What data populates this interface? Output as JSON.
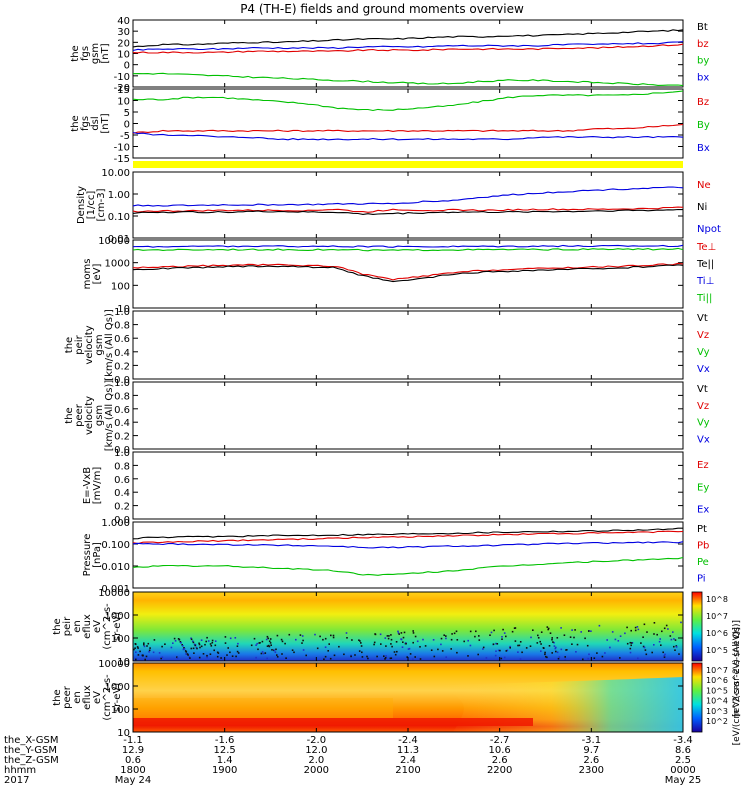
{
  "chart_data": {
    "type": "line",
    "title": "P4 (TH-E) fields and ground moments overview",
    "x_ticks": [
      "1800",
      "1900",
      "2000",
      "2100",
      "2200",
      "2300",
      "0000"
    ],
    "x_range_hhmm": [
      "1800",
      "0000"
    ],
    "panels": [
      {
        "id": "fgs-gsm",
        "ylabel": [
          "the",
          "fgs",
          "gsm",
          "[nT]"
        ],
        "yticks": [
          "40",
          "30",
          "20",
          "10",
          "0",
          "-10",
          "-20"
        ],
        "ylim": [
          -20,
          40
        ],
        "scale": "linear",
        "legend": [
          {
            "name": "Bt",
            "color": "#000000"
          },
          {
            "name": "bz",
            "color": "#e00000"
          },
          {
            "name": "by",
            "color": "#00c000"
          },
          {
            "name": "bx",
            "color": "#0000e0"
          }
        ],
        "series": [
          {
            "name": "Bt",
            "color": "#000000",
            "values": [
              16,
              18,
              18,
              19,
              20,
              20,
              21,
              22,
              23,
              23,
              24,
              25,
              25,
              26,
              26,
              27,
              28,
              29,
              30,
              31
            ]
          },
          {
            "name": "bz",
            "color": "#e00000",
            "values": [
              11,
              11,
              11,
              11,
              12,
              12,
              12,
              12,
              13,
              13,
              13,
              14,
              14,
              14,
              14,
              15,
              15,
              16,
              17,
              18
            ]
          },
          {
            "name": "by",
            "color": "#00c000",
            "values": [
              -8,
              -8,
              -9,
              -10,
              -11,
              -12,
              -13,
              -14,
              -15,
              -16,
              -17,
              -17,
              -15,
              -14,
              -14,
              -15,
              -16,
              -17,
              -18,
              -19
            ]
          },
          {
            "name": "bx",
            "color": "#0000e0",
            "values": [
              13,
              14,
              14,
              14,
              15,
              15,
              15,
              15,
              16,
              16,
              16,
              17,
              17,
              17,
              17,
              18,
              18,
              19,
              19,
              20
            ]
          }
        ]
      },
      {
        "id": "fgs-dsl",
        "ylabel": [
          "the",
          "fgs",
          "dsl",
          "[nT]"
        ],
        "yticks": [
          "15",
          "10",
          "5",
          "0",
          "-5",
          "-10",
          "-15"
        ],
        "ylim": [
          -18,
          15
        ],
        "scale": "linear",
        "legend": [
          {
            "name": "Bz",
            "color": "#e00000"
          },
          {
            "name": "By",
            "color": "#00c000"
          },
          {
            "name": "Bx",
            "color": "#0000e0"
          }
        ],
        "series": [
          {
            "name": "Bz",
            "color": "#e00000",
            "values": [
              -6,
              -5,
              -5,
              -5,
              -5,
              -5,
              -5,
              -5,
              -5,
              -5,
              -5,
              -5,
              -5,
              -5,
              -5,
              -5,
              -4,
              -4,
              -3,
              -2
            ]
          },
          {
            "name": "By",
            "color": "#00c000",
            "values": [
              10,
              10,
              11,
              11,
              10,
              9,
              8,
              6,
              5,
              5,
              6,
              7,
              9,
              11,
              12,
              12,
              12,
              12,
              13,
              14
            ]
          },
          {
            "name": "Bx",
            "color": "#0000e0",
            "values": [
              -6,
              -7,
              -7,
              -8,
              -8,
              -9,
              -9,
              -9,
              -9,
              -9,
              -9,
              -9,
              -9,
              -9,
              -8,
              -8,
              -8,
              -8,
              -8,
              -8
            ]
          }
        ]
      },
      {
        "id": "density",
        "ylabel": [
          "Density",
          "[1/cc]",
          "[cm-3]"
        ],
        "yticks": [
          "10.00",
          "1.00",
          "0.10",
          "0.01"
        ],
        "ylim": [
          0.01,
          10
        ],
        "scale": "log",
        "legend": [
          {
            "name": "Ne",
            "color": "#e00000"
          },
          {
            "name": "Ni",
            "color": "#000000"
          },
          {
            "name": "Npot",
            "color": "#0000e0"
          }
        ],
        "series": [
          {
            "name": "Ne",
            "color": "#e00000",
            "values": [
              0.16,
              0.17,
              0.17,
              0.18,
              0.18,
              0.18,
              0.18,
              0.2,
              0.15,
              0.2,
              0.18,
              0.19,
              0.18,
              0.19,
              0.2,
              0.2,
              0.2,
              0.21,
              0.22,
              0.25
            ]
          },
          {
            "name": "Ni",
            "color": "#000000",
            "values": [
              0.14,
              0.15,
              0.15,
              0.15,
              0.16,
              0.16,
              0.15,
              0.15,
              0.12,
              0.13,
              0.14,
              0.15,
              0.15,
              0.15,
              0.16,
              0.16,
              0.17,
              0.18,
              0.18,
              0.2
            ]
          },
          {
            "name": "Npot",
            "color": "#0000e0",
            "values": [
              0.3,
              0.3,
              0.3,
              0.32,
              0.32,
              0.33,
              0.33,
              0.35,
              0.36,
              0.36,
              0.45,
              0.5,
              0.7,
              0.9,
              1.1,
              1.3,
              1.5,
              1.7,
              1.9,
              2.0
            ]
          }
        ]
      },
      {
        "id": "moms-temp",
        "ylabel": [
          "moms",
          "[eV]"
        ],
        "yticks": [
          "10000",
          "1000",
          "100",
          "10"
        ],
        "ylim": [
          10,
          10000
        ],
        "scale": "log",
        "legend": [
          {
            "name": "Te⊥",
            "color": "#e00000"
          },
          {
            "name": "Te||",
            "color": "#000000"
          },
          {
            "name": "Ti⊥",
            "color": "#0000e0"
          },
          {
            "name": "Ti||",
            "color": "#00c000"
          }
        ],
        "series": [
          {
            "name": "Te⊥",
            "color": "#e00000",
            "values": [
              600,
              650,
              700,
              750,
              800,
              800,
              750,
              700,
              300,
              180,
              250,
              350,
              450,
              500,
              550,
              600,
              650,
              700,
              800,
              900
            ]
          },
          {
            "name": "Te||",
            "color": "#000000",
            "values": [
              500,
              550,
              600,
              650,
              700,
              700,
              650,
              600,
              250,
              140,
              200,
              300,
              380,
              420,
              460,
              500,
              550,
              600,
              700,
              800
            ]
          },
          {
            "name": "Ti⊥",
            "color": "#0000e0",
            "values": [
              5000,
              5200,
              5200,
              5300,
              5300,
              5300,
              5200,
              5200,
              5100,
              5000,
              5100,
              5200,
              5300,
              5300,
              5400,
              5400,
              5400,
              5500,
              5500,
              5500
            ]
          },
          {
            "name": "Ti||",
            "color": "#00c000",
            "values": [
              3600,
              3700,
              3700,
              3800,
              3800,
              3800,
              3700,
              3700,
              3600,
              3500,
              3600,
              3700,
              3700,
              3800,
              3800,
              3800,
              3900,
              3900,
              3900,
              4000
            ]
          }
        ]
      },
      {
        "id": "peir-velocity",
        "ylabel": [
          "the",
          "peir",
          "velocity",
          "gsm",
          "[km/s (All Qs)]"
        ],
        "yticks": [
          "1.0",
          "0.8",
          "0.6",
          "0.4",
          "0.2",
          "0.0"
        ],
        "ylim": [
          0,
          1
        ],
        "scale": "linear",
        "legend": [
          {
            "name": "Vt",
            "color": "#000000"
          },
          {
            "name": "Vz",
            "color": "#e00000"
          },
          {
            "name": "Vy",
            "color": "#00c000"
          },
          {
            "name": "Vx",
            "color": "#0000e0"
          }
        ],
        "series": []
      },
      {
        "id": "peer-velocity",
        "ylabel": [
          "the",
          "peer",
          "velocity",
          "gsm",
          "[km/s (All Qs)]"
        ],
        "yticks": [
          "1.0",
          "0.8",
          "0.6",
          "0.4",
          "0.2",
          "0.0"
        ],
        "ylim": [
          0,
          1
        ],
        "scale": "linear",
        "legend": [
          {
            "name": "Vt",
            "color": "#000000"
          },
          {
            "name": "Vz",
            "color": "#e00000"
          },
          {
            "name": "Vy",
            "color": "#00c000"
          },
          {
            "name": "Vx",
            "color": "#0000e0"
          }
        ],
        "series": []
      },
      {
        "id": "efield",
        "ylabel": [
          "E=-VxB",
          "[mV/m]"
        ],
        "yticks": [
          "1.0",
          "0.8",
          "0.6",
          "0.4",
          "0.2",
          "0.0"
        ],
        "ylim": [
          0,
          1
        ],
        "scale": "linear",
        "legend": [
          {
            "name": "Ez",
            "color": "#e00000"
          },
          {
            "name": "Ey",
            "color": "#00c000"
          },
          {
            "name": "Ex",
            "color": "#0000e0"
          }
        ],
        "series": []
      },
      {
        "id": "pressure",
        "ylabel": [
          "Pressure",
          "[nPa]"
        ],
        "yticks": [
          "1.000",
          "0.100",
          "0.010",
          "0.001"
        ],
        "ylim": [
          0.001,
          1
        ],
        "scale": "log",
        "legend": [
          {
            "name": "Pt",
            "color": "#000000"
          },
          {
            "name": "Pb",
            "color": "#e00000"
          },
          {
            "name": "Pe",
            "color": "#00c000"
          },
          {
            "name": "Pi",
            "color": "#0000e0"
          }
        ],
        "series": [
          {
            "name": "Pt",
            "color": "#000000",
            "values": [
              0.18,
              0.2,
              0.21,
              0.22,
              0.23,
              0.24,
              0.25,
              0.26,
              0.27,
              0.28,
              0.3,
              0.31,
              0.33,
              0.35,
              0.37,
              0.38,
              0.4,
              0.42,
              0.45,
              0.5
            ]
          },
          {
            "name": "Pb",
            "color": "#e00000",
            "values": [
              0.11,
              0.12,
              0.13,
              0.14,
              0.15,
              0.16,
              0.17,
              0.18,
              0.2,
              0.21,
              0.22,
              0.24,
              0.25,
              0.27,
              0.29,
              0.3,
              0.31,
              0.33,
              0.35,
              0.38
            ]
          },
          {
            "name": "Pe",
            "color": "#00c000",
            "values": [
              0.009,
              0.01,
              0.01,
              0.01,
              0.009,
              0.008,
              0.007,
              0.006,
              0.004,
              0.004,
              0.005,
              0.006,
              0.008,
              0.01,
              0.012,
              0.014,
              0.016,
              0.018,
              0.02,
              0.023
            ]
          },
          {
            "name": "Pi",
            "color": "#0000e0",
            "values": [
              0.1,
              0.1,
              0.1,
              0.095,
              0.09,
              0.088,
              0.085,
              0.08,
              0.07,
              0.07,
              0.075,
              0.08,
              0.085,
              0.09,
              0.1,
              0.105,
              0.11,
              0.115,
              0.12,
              0.12
            ]
          }
        ]
      },
      {
        "id": "peir-spectrogram",
        "type": "heatmap",
        "ylabel": [
          "the",
          "peir",
          "en",
          "eflux",
          "eV",
          "(cm^2-s-",
          "sr-eV)"
        ],
        "yticks": [
          "10000",
          "1000",
          "100",
          "10"
        ],
        "ylim": [
          10,
          20000
        ],
        "scale": "log",
        "colorbar_label": "[eV/(cm^2-s-sr-eV) (All Qs)]",
        "colorbar_ticks": [
          "10^8",
          "10^7",
          "10^6",
          "10^5"
        ]
      },
      {
        "id": "peer-spectrogram",
        "type": "heatmap",
        "ylabel": [
          "the",
          "peer",
          "en",
          "eflux",
          "eV",
          "(cm^2-s-",
          "sr-eV)"
        ],
        "yticks": [
          "10000",
          "1000",
          "100",
          "10"
        ],
        "ylim": [
          5,
          20000
        ],
        "scale": "log",
        "colorbar_label": "[eV/(cm^2-s-sr-eV)]",
        "colorbar_ticks": [
          "10^7",
          "10^6",
          "10^5",
          "10^4",
          "10^3",
          "10^2"
        ]
      }
    ],
    "footer": {
      "row_labels": [
        "the_X-GSM",
        "the_Y-GSM",
        "the_Z-GSM",
        "hhmm",
        "2017"
      ],
      "rows": [
        [
          "-1.1",
          "-1.6",
          "-2.0",
          "-2.4",
          "-2.7",
          "-3.1",
          "-3.4"
        ],
        [
          "12.9",
          "12.5",
          "12.0",
          "11.3",
          "10.6",
          "9.7",
          "8.6"
        ],
        [
          "0.6",
          "1.4",
          "2.0",
          "2.4",
          "2.6",
          "2.6",
          "2.5"
        ],
        [
          "1800",
          "1900",
          "2000",
          "2100",
          "2200",
          "2300",
          "0000"
        ],
        [
          "May 24",
          "",
          "",
          "",
          "",
          "",
          "May 25"
        ]
      ]
    }
  }
}
